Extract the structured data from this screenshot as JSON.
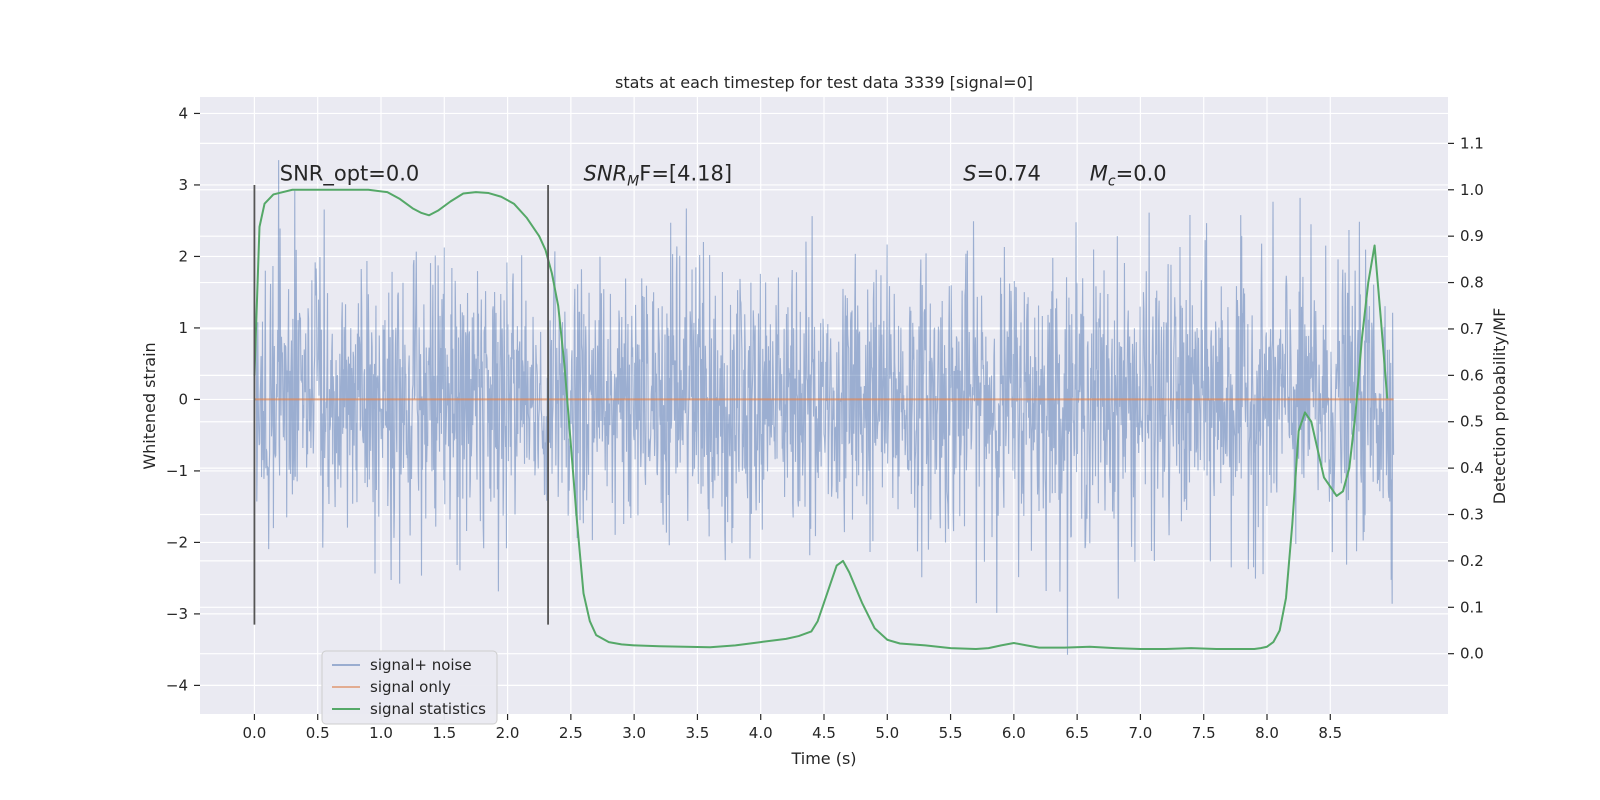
{
  "chart_data": {
    "type": "line",
    "title": "stats at each timestep for test data 3339 [signal=0]",
    "xlabel": "Time (s)",
    "ylabel": "Whitened strain",
    "y2label": "Detection probability/MF",
    "xlim": [
      -0.43,
      9.43
    ],
    "ylim": [
      -4.4,
      4.23
    ],
    "y2lim": [
      -0.13,
      1.2
    ],
    "x_ticks": [
      "0.0",
      "0.5",
      "1.0",
      "1.5",
      "2.0",
      "2.5",
      "3.0",
      "3.5",
      "4.0",
      "4.5",
      "5.0",
      "5.5",
      "6.0",
      "6.5",
      "7.0",
      "7.5",
      "8.0",
      "8.5"
    ],
    "x_tick_values": [
      0,
      0.5,
      1,
      1.5,
      2,
      2.5,
      3,
      3.5,
      4,
      4.5,
      5,
      5.5,
      6,
      6.5,
      7,
      7.5,
      8,
      8.5
    ],
    "y_ticks": [
      "4",
      "3",
      "2",
      "1",
      "0",
      "−1",
      "−2",
      "−3",
      "−4"
    ],
    "y_tick_values": [
      4,
      3,
      2,
      1,
      0,
      -1,
      -2,
      -3,
      -4
    ],
    "y2_ticks": [
      "1.1",
      "1.0",
      "0.9",
      "0.8",
      "0.7",
      "0.6",
      "0.5",
      "0.4",
      "0.3",
      "0.2",
      "0.1",
      "0.0"
    ],
    "y2_tick_values": [
      1.1,
      1.0,
      0.9,
      0.8,
      0.7,
      0.6,
      0.5,
      0.4,
      0.3,
      0.2,
      0.1,
      0.0
    ],
    "grid": true,
    "legend_position": "bottom-left",
    "series": [
      {
        "name": "signal+ noise",
        "color": "#4c72b0",
        "kind": "noise",
        "x_range": [
          0,
          9.0
        ],
        "min_peak": -4.0,
        "max_peak": 3.85,
        "typical_amplitude": 2.2
      },
      {
        "name": "signal only",
        "color": "#dd8452",
        "kind": "flat",
        "x": [
          0,
          9.0
        ],
        "y": [
          0,
          0
        ]
      },
      {
        "name": "signal statistics",
        "color": "#55a868",
        "kind": "line",
        "axis": "right",
        "x": [
          0,
          0.04,
          0.08,
          0.15,
          0.3,
          0.5,
          0.7,
          0.9,
          1.05,
          1.15,
          1.25,
          1.32,
          1.38,
          1.45,
          1.55,
          1.65,
          1.75,
          1.85,
          1.95,
          2.05,
          2.15,
          2.25,
          2.3,
          2.35,
          2.4,
          2.45,
          2.5,
          2.55,
          2.6,
          2.65,
          2.7,
          2.8,
          2.9,
          3.0,
          3.2,
          3.4,
          3.6,
          3.8,
          4.0,
          4.2,
          4.3,
          4.4,
          4.45,
          4.5,
          4.55,
          4.6,
          4.65,
          4.7,
          4.8,
          4.9,
          5.0,
          5.1,
          5.3,
          5.5,
          5.7,
          5.8,
          5.9,
          6.0,
          6.1,
          6.2,
          6.4,
          6.6,
          6.8,
          7.0,
          7.2,
          7.4,
          7.6,
          7.8,
          7.9,
          7.95,
          8.0,
          8.05,
          8.1,
          8.15,
          8.2,
          8.25,
          8.3,
          8.35,
          8.4,
          8.45,
          8.5,
          8.55,
          8.6,
          8.65,
          8.7,
          8.75,
          8.8,
          8.85,
          8.9,
          8.95
        ],
        "y": [
          0.6,
          0.92,
          0.97,
          0.99,
          1.0,
          1.0,
          1.0,
          1.0,
          0.995,
          0.98,
          0.96,
          0.95,
          0.945,
          0.955,
          0.975,
          0.992,
          0.995,
          0.993,
          0.985,
          0.97,
          0.94,
          0.9,
          0.87,
          0.82,
          0.75,
          0.62,
          0.45,
          0.28,
          0.13,
          0.07,
          0.04,
          0.025,
          0.02,
          0.018,
          0.016,
          0.015,
          0.014,
          0.018,
          0.025,
          0.032,
          0.038,
          0.048,
          0.07,
          0.11,
          0.15,
          0.19,
          0.2,
          0.175,
          0.11,
          0.055,
          0.03,
          0.022,
          0.018,
          0.012,
          0.01,
          0.012,
          0.018,
          0.023,
          0.018,
          0.013,
          0.013,
          0.015,
          0.012,
          0.01,
          0.01,
          0.012,
          0.01,
          0.01,
          0.01,
          0.012,
          0.015,
          0.025,
          0.05,
          0.12,
          0.28,
          0.48,
          0.52,
          0.5,
          0.44,
          0.38,
          0.36,
          0.34,
          0.35,
          0.4,
          0.52,
          0.68,
          0.8,
          0.88,
          0.72,
          0.55
        ]
      }
    ],
    "vertical_lines": [
      {
        "x": 0.0,
        "ymin": -3.15,
        "ymax": 3.0
      },
      {
        "x": 2.32,
        "ymin": -3.15,
        "ymax": 3.0
      }
    ],
    "annotations": [
      {
        "id": "snr-opt",
        "text": "SNR_opt=0.0",
        "x": 0.2,
        "y": 3.06,
        "italic_prefix": "",
        "sub": "",
        "rest": ""
      },
      {
        "id": "snr-mf",
        "text": "SNR_MF=[4.18]",
        "x": 2.6,
        "y": 3.06,
        "italic_prefix": "SNR",
        "sub": "M",
        "rest": "F=[4.18]"
      },
      {
        "id": "s-val",
        "text": "S=0.74",
        "x": 5.6,
        "y": 3.06,
        "italic_prefix": "S",
        "sub": "",
        "rest": "=0.74"
      },
      {
        "id": "mc-val",
        "text": "M_c=0.0",
        "x": 6.6,
        "y": 3.06,
        "italic_prefix": "M",
        "sub": "c",
        "rest": "=0.0"
      }
    ],
    "legend": [
      "signal+ noise",
      "signal only",
      "signal statistics"
    ]
  },
  "colors": {
    "plot_background": "#eaeaf2",
    "grid": "#ffffff",
    "vline": "#555555",
    "text": "#262626"
  }
}
